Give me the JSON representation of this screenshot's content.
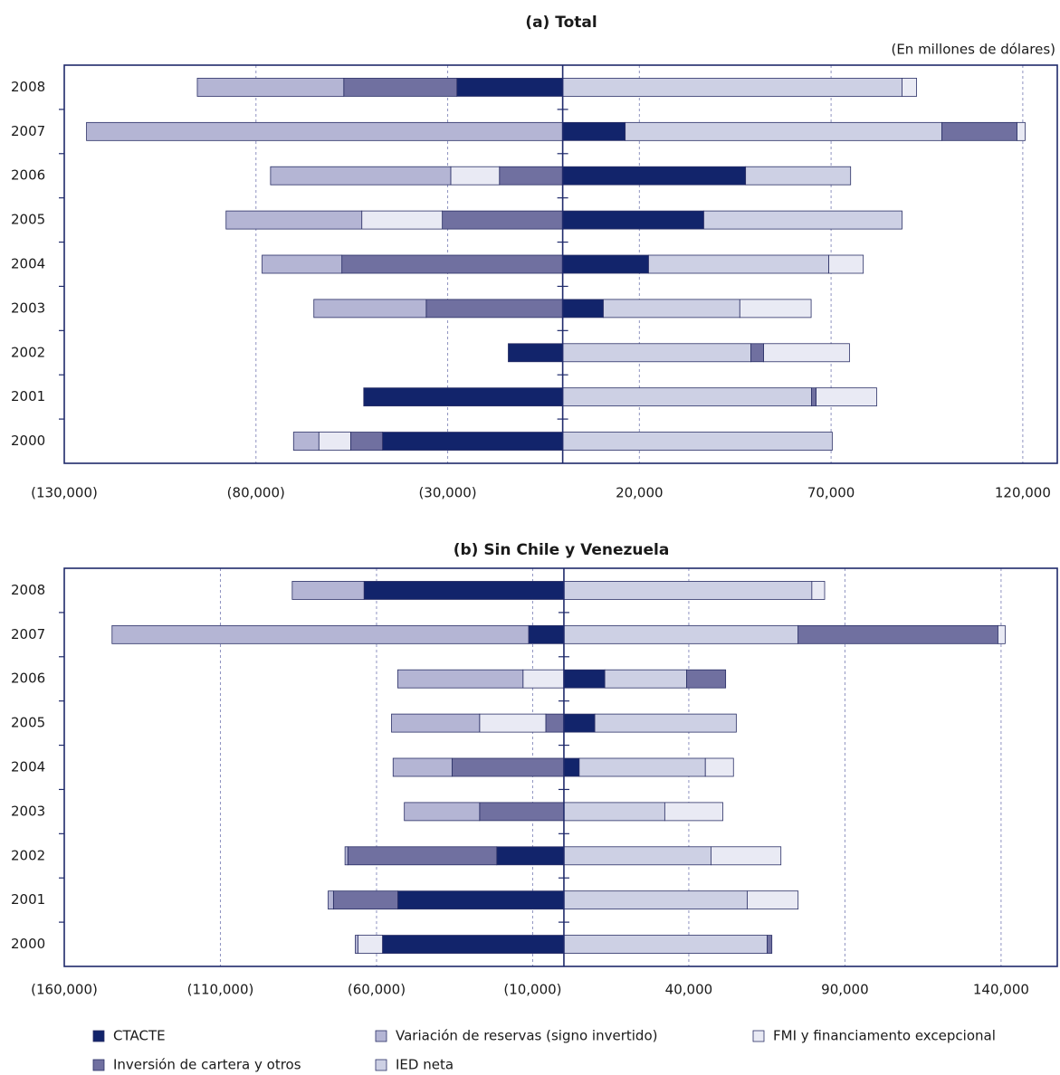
{
  "chart_data": [
    {
      "type": "bar",
      "orientation": "horizontal",
      "stacked": true,
      "title": "(a) Total",
      "subtitle": "(En millones de dólares)",
      "categories": [
        "2008",
        "2007",
        "2006",
        "2005",
        "2004",
        "2003",
        "2002",
        "2001",
        "2000"
      ],
      "xlim": [
        -130000,
        129000
      ],
      "xticks": [
        {
          "value": -130000,
          "label": "(130,000)"
        },
        {
          "value": -80000,
          "label": "(80,000)"
        },
        {
          "value": -30000,
          "label": "(30,000)"
        },
        {
          "value": 20000,
          "label": "20,000"
        },
        {
          "value": 70000,
          "label": "70,000"
        },
        {
          "value": 120000,
          "label": "120,000"
        }
      ],
      "grid": true,
      "series": [
        {
          "name": "CTACTE",
          "color": "#12246b",
          "values": [
            -27600,
            16300,
            47700,
            36800,
            22400,
            10600,
            -14200,
            -51900,
            -47000
          ]
        },
        {
          "name": "Inversión de cartera y otros",
          "color": "#7070a0",
          "values": [
            -29500,
            19600,
            -16500,
            -31400,
            -57600,
            -35600,
            3300,
            1200,
            -8300
          ]
        },
        {
          "name": "Variación de reservas (signo invertido)",
          "color": "#b4b5d4",
          "values": [
            -38200,
            -124200,
            -47000,
            -35400,
            -20800,
            -29300,
            null,
            null,
            -6600
          ]
        },
        {
          "name": "IED neta",
          "color": "#cdd0e4",
          "values": [
            88500,
            82600,
            27400,
            51700,
            47000,
            35600,
            49100,
            64900,
            70300
          ]
        },
        {
          "name": "FMI y financiamento excepcional",
          "color": "#e9eaf4",
          "values": [
            3800,
            2100,
            -12700,
            -21000,
            9000,
            18600,
            22400,
            15800,
            -8300
          ]
        }
      ]
    },
    {
      "type": "bar",
      "orientation": "horizontal",
      "stacked": true,
      "title": "(b) Sin Chile y Venezuela",
      "categories": [
        "2008",
        "2007",
        "2006",
        "2005",
        "2004",
        "2003",
        "2002",
        "2001",
        "2000"
      ],
      "xlim": [
        -160000,
        158000
      ],
      "xticks": [
        {
          "value": -160000,
          "label": "(160,000)"
        },
        {
          "value": -110000,
          "label": "(110,000)"
        },
        {
          "value": -60000,
          "label": "(60,000)"
        },
        {
          "value": -10000,
          "label": "(10,000)"
        },
        {
          "value": 40000,
          "label": "40,000"
        },
        {
          "value": 90000,
          "label": "90,000"
        },
        {
          "value": 140000,
          "label": "140,000"
        }
      ],
      "grid": true,
      "series": [
        {
          "name": "CTACTE",
          "color": "#12246b",
          "values": [
            -64000,
            -11300,
            13100,
            9900,
            4900,
            null,
            -21500,
            -53200,
            -58100
          ]
        },
        {
          "name": "Inversión de cartera y otros",
          "color": "#7070a0",
          "values": [
            null,
            64000,
            12500,
            -5800,
            -35800,
            -27000,
            -47700,
            -20600,
            1500
          ]
        },
        {
          "name": "Variación de reservas (signo invertido)",
          "color": "#b4b5d4",
          "values": [
            -23000,
            -133400,
            -40100,
            -28200,
            -18900,
            -24100,
            -900,
            -1700,
            -900
          ]
        },
        {
          "name": "IED neta",
          "color": "#cdd0e4",
          "values": [
            79400,
            75000,
            26200,
            45300,
            40400,
            32300,
            47100,
            58700,
            65100
          ]
        },
        {
          "name": "FMI y financiamento excepcional",
          "color": "#e9eaf4",
          "values": [
            4100,
            2300,
            -13100,
            -21200,
            9000,
            18600,
            22400,
            16300,
            -7800
          ]
        }
      ]
    }
  ]
}
